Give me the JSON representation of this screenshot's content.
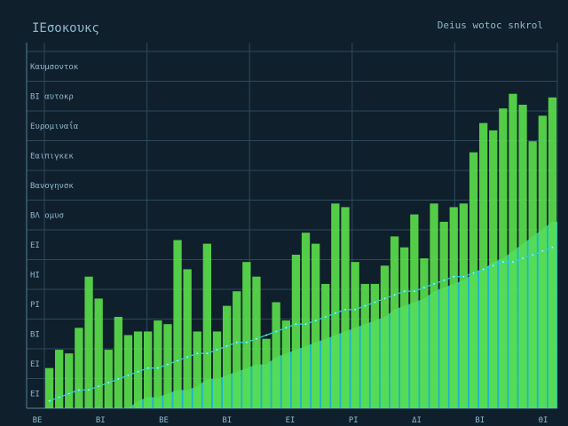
{
  "chart_data": {
    "type": "bar",
    "title": "ΙΕσοκουκς",
    "subtitle": "Deius wotoc snkrol",
    "ylim": [
      0,
      100
    ],
    "grid": true,
    "legend": "none",
    "colors": {
      "background": "#0f1f2b",
      "bars": "#5be04a",
      "area": "#22c8e0",
      "trend": "#2bd4c8",
      "grid": "#2c4a5c",
      "text": "#8fb8d0"
    },
    "y_tick_labels": [
      "Καυμσοντοκ",
      "ΒΙ αυτοκρ",
      "Ευρομιναΐα",
      "Εαιπιγκεκ",
      "Βανογηνσκ",
      "ΒΛ ομυσ",
      "ΕΙ",
      "ΗΙ",
      "ΡΙ",
      "ΒΙ",
      "ΕΙ",
      "ΕΙ"
    ],
    "x_tick_labels": [
      "ΒΕ",
      "ΒΙ",
      "ΒΕ",
      "ΒΙ",
      "ΕΙ",
      "ΡΙ",
      "ΔΙ",
      "ΒΙ",
      "ΘΙ"
    ],
    "series": [
      {
        "type": "bar",
        "values": [
          11,
          16,
          15,
          22,
          36,
          30,
          16,
          25,
          20,
          21,
          21,
          24,
          23,
          46,
          38,
          21,
          45,
          21,
          28,
          32,
          40,
          36,
          19,
          29,
          24,
          42,
          48,
          45,
          34,
          56,
          55,
          40,
          34,
          34,
          39,
          47,
          44,
          53,
          41,
          56,
          51,
          55,
          56,
          70,
          78,
          76,
          82,
          86,
          83,
          73,
          80,
          85
        ]
      },
      {
        "type": "area",
        "values": [
          0,
          0,
          0,
          0,
          0,
          0,
          0,
          0,
          0,
          2,
          3,
          3,
          4,
          5,
          5,
          6,
          8,
          8,
          9,
          10,
          11,
          12,
          12,
          14,
          15,
          16,
          17,
          18,
          19,
          20,
          21,
          22,
          23,
          24,
          25,
          27,
          28,
          29,
          30,
          32,
          33,
          34,
          35,
          37,
          38,
          40,
          41,
          43,
          45,
          47,
          49,
          51
        ]
      },
      {
        "type": "line",
        "values": [
          2,
          3,
          4,
          5,
          5,
          6,
          7,
          8,
          9,
          10,
          11,
          11,
          12,
          13,
          14,
          15,
          15,
          16,
          17,
          18,
          18,
          19,
          20,
          21,
          22,
          23,
          23,
          24,
          25,
          26,
          27,
          27,
          28,
          29,
          30,
          31,
          32,
          32,
          33,
          34,
          35,
          36,
          36,
          37,
          38,
          39,
          40,
          40,
          41,
          42,
          43,
          44
        ]
      }
    ]
  }
}
